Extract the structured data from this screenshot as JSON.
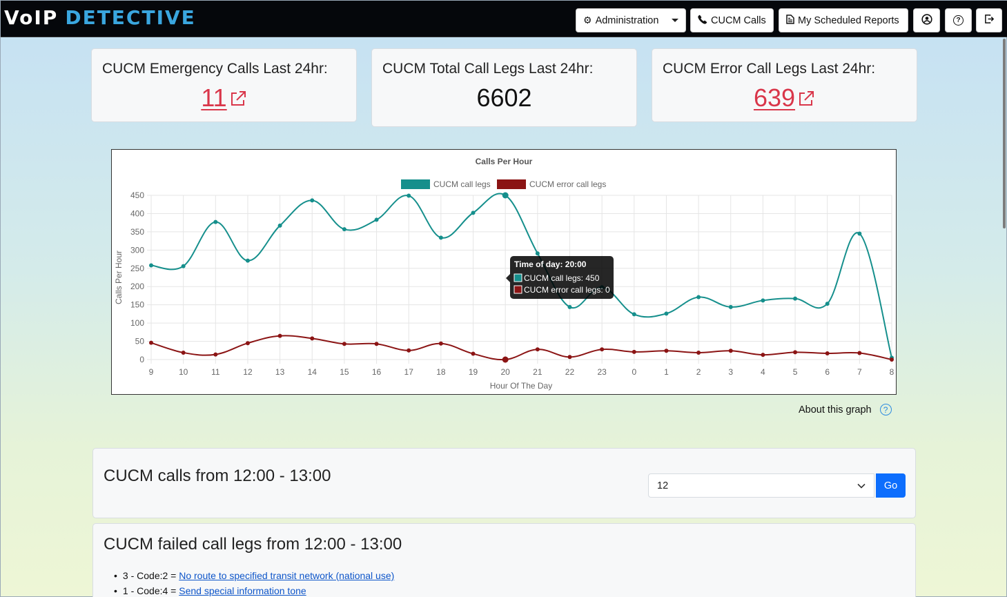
{
  "navbar": {
    "logo_voip": "VoIP",
    "logo_detective": "DETECTIVE",
    "administration": "Administration",
    "cucm_calls": "CUCM Calls",
    "scheduled_reports": "My Scheduled Reports"
  },
  "stats": {
    "emergency_title": "CUCM Emergency Calls Last 24hr:",
    "emergency_value": "11",
    "total_title": "CUCM Total Call Legs Last 24hr:",
    "total_value": "6602",
    "error_title": "CUCM Error Call Legs Last 24hr:",
    "error_value": "639"
  },
  "chart_data": {
    "type": "line",
    "title": "Calls Per Hour",
    "xlabel": "Hour Of The Day",
    "ylabel": "Calls Per Hour",
    "ylim": [
      0,
      450
    ],
    "yticks": [
      0,
      50,
      100,
      150,
      200,
      250,
      300,
      350,
      400,
      450
    ],
    "categories": [
      "9",
      "10",
      "11",
      "12",
      "13",
      "14",
      "15",
      "16",
      "17",
      "18",
      "19",
      "20",
      "21",
      "22",
      "23",
      "0",
      "1",
      "2",
      "3",
      "4",
      "5",
      "6",
      "7",
      "8"
    ],
    "series": [
      {
        "name": "CUCM call legs",
        "color": "#158f8c",
        "values": [
          258,
          256,
          377,
          271,
          367,
          436,
          357,
          383,
          449,
          334,
          402,
          450,
          291,
          144,
          198,
          124,
          126,
          171,
          144,
          162,
          167,
          153,
          345,
          5
        ]
      },
      {
        "name": "CUCM error call legs",
        "color": "#8b1414",
        "values": [
          46,
          19,
          14,
          45,
          65,
          58,
          43,
          43,
          25,
          44,
          16,
          0,
          28,
          7,
          28,
          21,
          24,
          19,
          24,
          13,
          20,
          17,
          18,
          0
        ]
      }
    ],
    "legend": "top",
    "grid": true,
    "tooltip": {
      "title": "Time of day: 20:00",
      "line1": "CUCM call legs: 450",
      "line2": "CUCM error call legs: 0"
    }
  },
  "about_graph": "About this graph",
  "calls_section": {
    "title": "CUCM calls from 12:00 - 13:00",
    "select_value": "12",
    "go_label": "Go"
  },
  "failed_section": {
    "title": "CUCM failed call legs from 12:00 - 13:00",
    "items": [
      {
        "prefix": "3 - Code:2 = ",
        "link": "No route to specified transit network (national use)"
      },
      {
        "prefix": "1 - Code:4 = ",
        "link": "Send special information tone"
      }
    ]
  }
}
